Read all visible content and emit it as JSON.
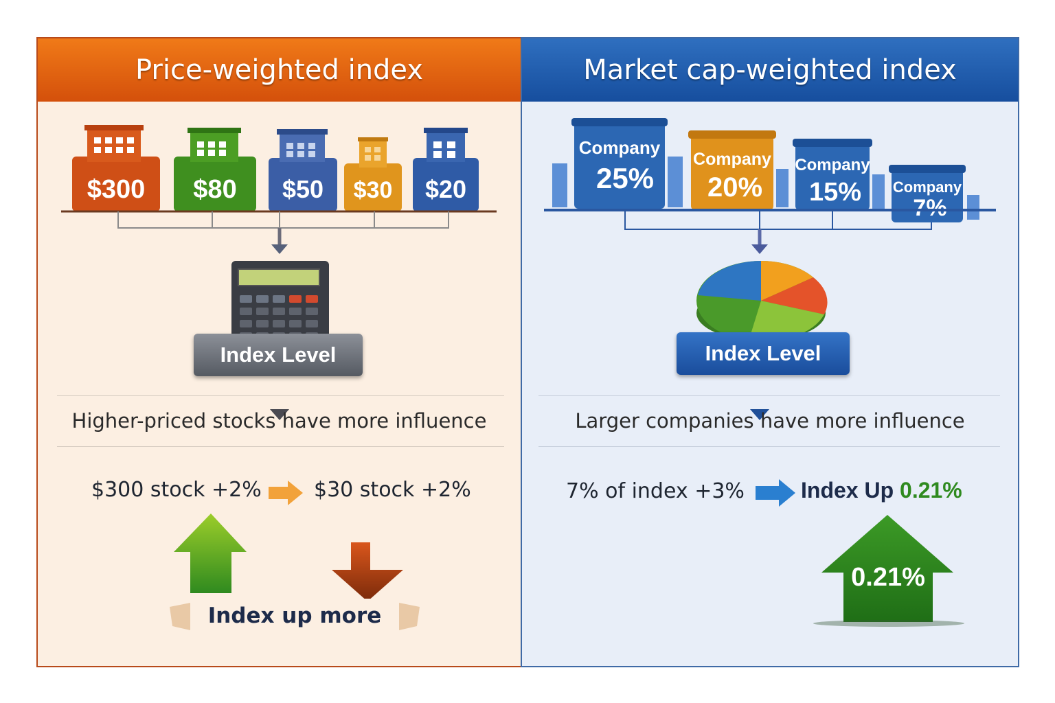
{
  "left": {
    "title": "Price-weighted index",
    "stocks": [
      {
        "price": "$300",
        "color": "#cf4f16"
      },
      {
        "price": "$80",
        "color": "#3f8f1f"
      },
      {
        "price": "$50",
        "color": "#3b5ea6"
      },
      {
        "price": "$30",
        "color": "#e0951d"
      },
      {
        "price": "$20",
        "color": "#2f5ba6"
      }
    ],
    "calculator_icon": "calculator-icon",
    "index_level": "Index Level",
    "influence": "Higher-priced stocks have more influence",
    "example": {
      "left_stock": "$300 stock",
      "left_change": "+2%",
      "right_stock": "$30 stock",
      "right_change": "+2%"
    },
    "result": "Index up more"
  },
  "right": {
    "title": "Market cap-weighted index",
    "companies": [
      {
        "label": "Company",
        "weight": "25%",
        "color": "#2c67b3"
      },
      {
        "label": "Company",
        "weight": "20%",
        "color": "#e0921c"
      },
      {
        "label": "Company",
        "weight": "15%",
        "color": "#2c67b3"
      },
      {
        "label": "Company",
        "weight": "7%",
        "color": "#2c67b3"
      }
    ],
    "pie_icon": "pie-chart-icon",
    "index_level": "Index Level",
    "influence": "Larger companies have more influence",
    "example": {
      "share": "7% of index",
      "change": "+3%",
      "result_label": "Index Up",
      "result_value": "0.21%"
    },
    "up_arrow_value": "0.21%"
  },
  "colors": {
    "orange_header": "#e4620f",
    "blue_header": "#1f5aa8",
    "up_green": "#2f8a1f",
    "down_brown": "#a33a0e"
  }
}
